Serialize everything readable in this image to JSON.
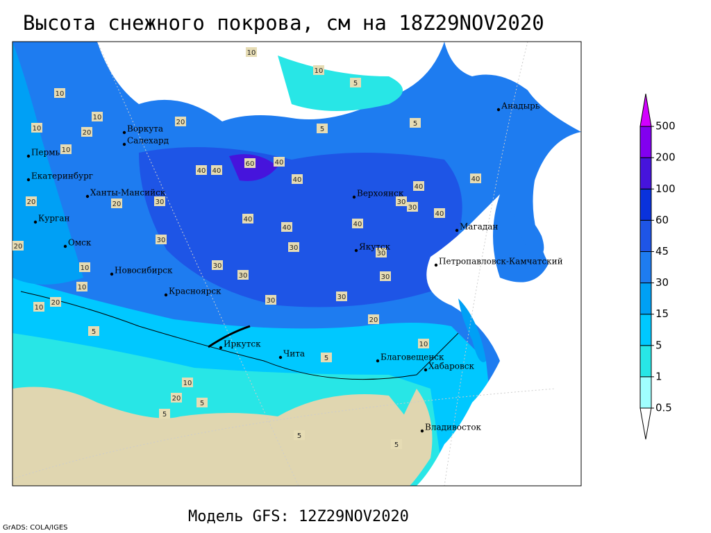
{
  "title": "Высота снежного покрова, см на 18Z29NOV2020",
  "footer": "Модель GFS: 12Z29NOV2020",
  "credit": "GrADS: COLA/IGES",
  "legend": {
    "ticks": [
      0.5,
      1,
      5,
      15,
      30,
      45,
      60,
      100,
      200,
      500
    ],
    "colors": [
      "#ffffff",
      "#a0ffff",
      "#28e6e6",
      "#00c8ff",
      "#00a0f5",
      "#1e7cf0",
      "#1e55e6",
      "#0a32dc",
      "#4614dc",
      "#8200f0",
      "#d200ff"
    ]
  },
  "cities": [
    "Воркута",
    "Салехард",
    "Пермь",
    "Екатеринбург",
    "Ханты-Мансийск",
    "Курган",
    "Омск",
    "Новосибирск",
    "Красноярск",
    "Иркутск",
    "Чита",
    "Благовещенск",
    "Хабаровск",
    "Владивосток",
    "Якутск",
    "Верхоянск",
    "Магадан",
    "Петропавловск-Камчатский",
    "Анадырь"
  ],
  "contour_labels": [
    10,
    10,
    5,
    10,
    5,
    10,
    10,
    20,
    10,
    5,
    20,
    20,
    40,
    40,
    60,
    40,
    40,
    30,
    30,
    40,
    40,
    20,
    30,
    40,
    40,
    30,
    30,
    30,
    40,
    30,
    20,
    10,
    10,
    20,
    30,
    30,
    10,
    5,
    5,
    5,
    10,
    20,
    5,
    5,
    5,
    10,
    30,
    40,
    30,
    20
  ]
}
